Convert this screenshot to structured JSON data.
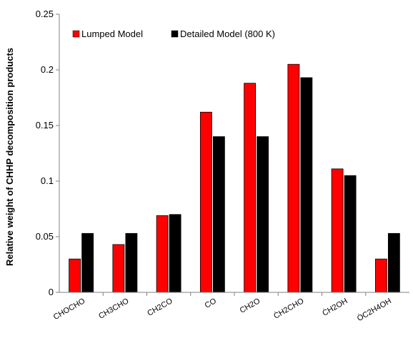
{
  "chart_data": {
    "type": "bar",
    "title": "",
    "xlabel": "",
    "ylabel": "Relative weight of CHHP decomposition products",
    "ylim": [
      0,
      0.25
    ],
    "yticks": [
      "0",
      "0.05",
      "0.1",
      "0.15",
      "0.2",
      "0.25"
    ],
    "ytick_values": [
      0,
      0.05,
      0.1,
      0.15,
      0.2,
      0.25
    ],
    "grid": false,
    "legend_position": "top-left",
    "categories": [
      "CHOCHO",
      "CH3CHO",
      "CH2CO",
      "CO",
      "CH2O",
      "ĊH2CHO",
      "ĊH2OH",
      "ȮC2H4OH"
    ],
    "series": [
      {
        "name": "Lumped Model",
        "color": "#ff0000",
        "values": [
          0.03,
          0.043,
          0.069,
          0.162,
          0.188,
          0.205,
          0.111,
          0.03
        ]
      },
      {
        "name": "Detailed Model (800 K)",
        "color": "#000000",
        "values": [
          0.053,
          0.053,
          0.07,
          0.14,
          0.14,
          0.193,
          0.105,
          0.053
        ]
      }
    ]
  }
}
